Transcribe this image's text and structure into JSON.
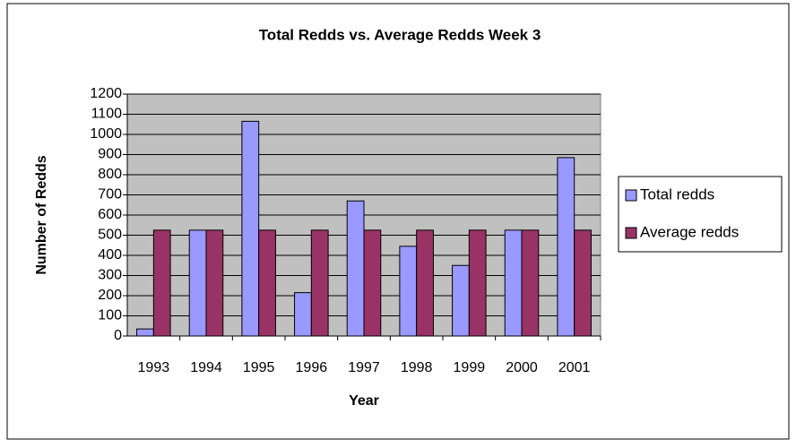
{
  "chart_data": {
    "type": "bar",
    "title": "Total Redds vs. Average Redds Week 3",
    "x_label": "Year",
    "y_label": "Number of Redds",
    "categories": [
      "1993",
      "1994",
      "1995",
      "1996",
      "1997",
      "1998",
      "1999",
      "2000",
      "2001"
    ],
    "series": [
      {
        "name": "Total redds",
        "color": "#9999ff",
        "values": [
          35,
          525,
          1065,
          215,
          670,
          445,
          350,
          525,
          885
        ]
      },
      {
        "name": "Average redds",
        "color": "#993366",
        "values": [
          525,
          525,
          525,
          525,
          525,
          525,
          525,
          525,
          525
        ]
      }
    ],
    "ylim": [
      0,
      1200
    ],
    "yticks": [
      0,
      100,
      200,
      300,
      400,
      500,
      600,
      700,
      800,
      900,
      1000,
      1100,
      1200
    ],
    "grid": true,
    "legend": "right",
    "plot_background": "#c0c0c0"
  }
}
